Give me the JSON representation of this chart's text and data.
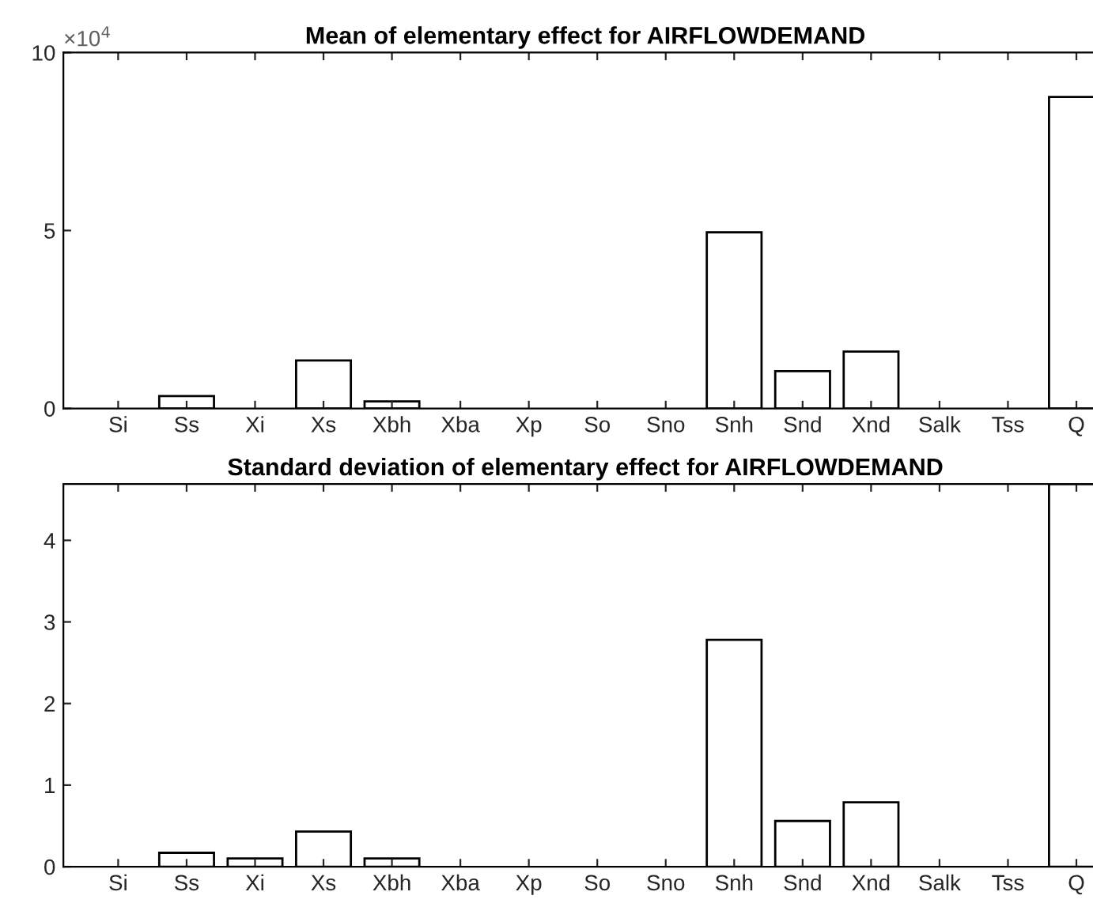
{
  "chart_data": [
    {
      "type": "bar",
      "title": "Mean of elementary effect for AIRFLOWDEMAND",
      "categories": [
        "Si",
        "Ss",
        "Xi",
        "Xs",
        "Xbh",
        "Xba",
        "Xp",
        "So",
        "Sno",
        "Snh",
        "Snd",
        "Xnd",
        "Salk",
        "Tss",
        "Q"
      ],
      "values": [
        0,
        0.35,
        0,
        1.35,
        0.2,
        0,
        0,
        0,
        0,
        4.95,
        1.05,
        1.6,
        0,
        0,
        8.75
      ],
      "color": "#ffffff",
      "ylim": [
        0,
        10
      ],
      "yticks": [
        0,
        5,
        10
      ],
      "annotations": [
        "×10$^{4}$"
      ],
      "grid": false,
      "legend": false
    },
    {
      "type": "bar",
      "title": "Standard deviation of elementary effect for AIRFLOWDEMAND",
      "categories": [
        "Si",
        "Ss",
        "Xi",
        "Xs",
        "Xbh",
        "Xba",
        "Xp",
        "So",
        "Sno",
        "Snh",
        "Snd",
        "Xnd",
        "Salk",
        "Tss",
        "Q"
      ],
      "values": [
        0,
        0.17,
        0.1,
        0.43,
        0.1,
        0,
        0,
        0,
        0,
        2.78,
        0.56,
        0.79,
        0,
        0,
        4.69
      ],
      "color": "#ffffff",
      "ylim": [
        0,
        4.69
      ],
      "yticks": [
        0,
        1,
        2,
        3,
        4
      ],
      "grid": false,
      "legend": false
    }
  ]
}
